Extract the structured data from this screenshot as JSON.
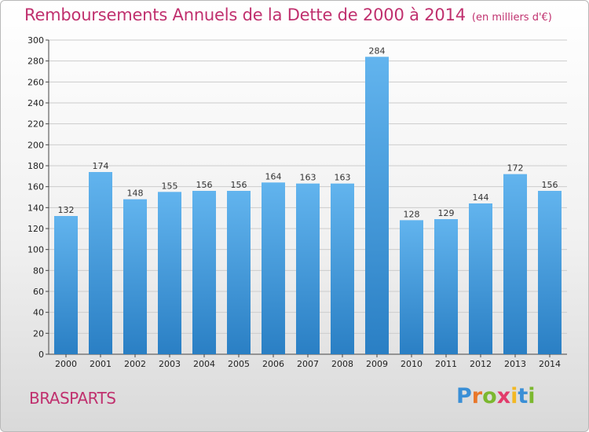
{
  "header": {
    "title": "Remboursements Annuels de la Dette de 2000 à 2014",
    "units": "(en milliers d'€)"
  },
  "commune": "BRASPARTS",
  "logo": {
    "text": "Proxiti",
    "letters": [
      "P",
      "r",
      "o",
      "x",
      "i",
      "t",
      "i"
    ],
    "colors": [
      "#3a8fd6",
      "#e8772a",
      "#7cb82f",
      "#e23b6b",
      "#f2b824",
      "#3a8fd6",
      "#7cb82f"
    ]
  },
  "colors": {
    "title": "#c0306e",
    "bar_top": "#62b4ee",
    "bar_bottom": "#2a7fc4",
    "grid": "#cccccc"
  },
  "chart_data": {
    "type": "bar",
    "title": "Remboursements Annuels de la Dette de 2000 à 2014",
    "categories": [
      "2000",
      "2001",
      "2002",
      "2003",
      "2004",
      "2005",
      "2006",
      "2007",
      "2008",
      "2009",
      "2010",
      "2011",
      "2012",
      "2013",
      "2014"
    ],
    "values": [
      132,
      174,
      148,
      155,
      156,
      156,
      164,
      163,
      163,
      284,
      128,
      129,
      144,
      172,
      156
    ],
    "ylim": [
      0,
      300
    ],
    "yticks": [
      0,
      20,
      40,
      60,
      80,
      100,
      120,
      140,
      160,
      180,
      200,
      220,
      240,
      260,
      280,
      300
    ],
    "grid": true,
    "legend": "none",
    "data_labels": true
  }
}
